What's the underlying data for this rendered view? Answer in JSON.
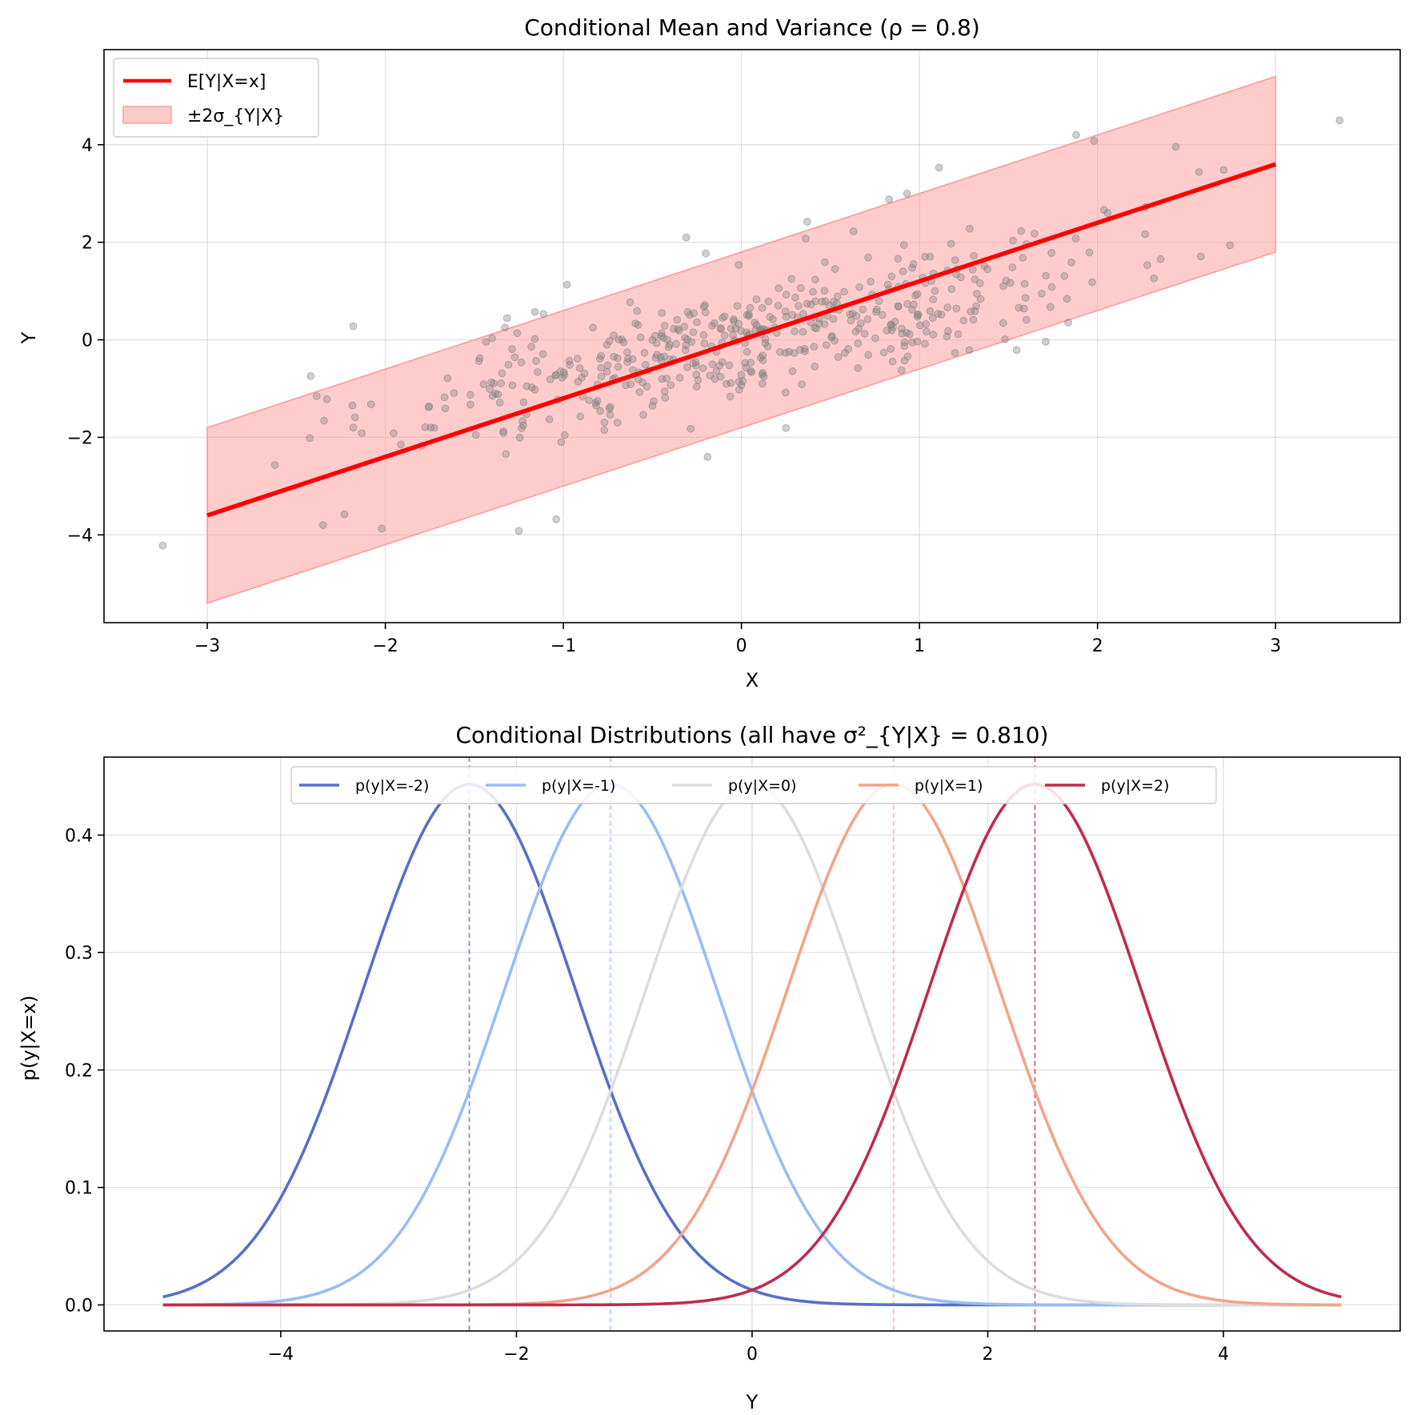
{
  "chart_data": [
    {
      "type": "scatter",
      "title": "Conditional Mean and Variance (ρ = 0.8)",
      "xlabel": "X",
      "ylabel": "Y",
      "xlim": [
        -3.58,
        3.7
      ],
      "ylim": [
        -5.8,
        5.95
      ],
      "xticks": [
        -3,
        -2,
        -1,
        0,
        1,
        2,
        3
      ],
      "yticks": [
        -4,
        -2,
        0,
        2,
        4
      ],
      "xtick_labels": [
        "−3",
        "−2",
        "−1",
        "0",
        "1",
        "2",
        "3"
      ],
      "ytick_labels": [
        "−4",
        "−2",
        "0",
        "2",
        "4"
      ],
      "grid": true,
      "legend_position": "upper-left",
      "rho": 0.8,
      "n_points": 500,
      "mean_line": {
        "name": "E[Y|X=x]",
        "x": [
          -3,
          3
        ],
        "y": [
          -3.6,
          3.6
        ],
        "color": "#ff0000"
      },
      "band": {
        "name": "±2σ_{Y|X}",
        "x": [
          -3,
          3
        ],
        "lower": [
          -5.4,
          1.8
        ],
        "upper": [
          -1.8,
          5.4
        ],
        "color": "#ff9999"
      },
      "sample_color": "#808080",
      "outlier_points": [
        [
          -3.25,
          -4.22
        ],
        [
          -2.62,
          -2.57
        ],
        [
          -2.18,
          0.28
        ],
        [
          -2.18,
          -1.8
        ],
        [
          -2.02,
          -3.87
        ],
        [
          -2.35,
          -3.8
        ],
        [
          -2.23,
          -3.58
        ],
        [
          -1.25,
          -3.92
        ],
        [
          -1.04,
          -3.68
        ],
        [
          -0.19,
          -2.4
        ],
        [
          -0.31,
          2.1
        ],
        [
          -0.2,
          1.77
        ],
        [
          -0.98,
          1.13
        ],
        [
          -1.16,
          0.57
        ],
        [
          0.37,
          2.42
        ],
        [
          0.83,
          2.88
        ],
        [
          0.93,
          3.0
        ],
        [
          1.11,
          3.53
        ],
        [
          1.88,
          4.2
        ],
        [
          1.98,
          4.08
        ],
        [
          2.44,
          3.96
        ],
        [
          2.57,
          3.44
        ],
        [
          2.27,
          2.72
        ],
        [
          2.28,
          1.53
        ],
        [
          1.97,
          1.18
        ],
        [
          1.48,
          0.01
        ],
        [
          1.28,
          -0.21
        ],
        [
          0.25,
          -1.81
        ],
        [
          -1.4,
          0.03
        ],
        [
          3.36,
          4.5
        ]
      ]
    },
    {
      "type": "line",
      "title": "Conditional Distributions (all have σ²_{Y|X} = 0.810)",
      "xlabel": "Y",
      "ylabel": "p(y|X=x)",
      "xlim": [
        -5.5,
        5.5
      ],
      "ylim": [
        -0.0222,
        0.4664
      ],
      "xticks": [
        -4,
        -2,
        0,
        2,
        4
      ],
      "yticks": [
        0.0,
        0.1,
        0.2,
        0.3,
        0.4
      ],
      "xtick_labels": [
        "−4",
        "−2",
        "0",
        "2",
        "4"
      ],
      "ytick_labels": [
        "0.0",
        "0.1",
        "0.2",
        "0.3",
        "0.4"
      ],
      "grid": true,
      "legend_position": "top-center",
      "variance": 0.81,
      "y_range": [
        -5,
        5
      ],
      "series": [
        {
          "name": "p(y|X=-2)",
          "x_given": -2,
          "mean": -2.4,
          "color": "#5a6ec8"
        },
        {
          "name": "p(y|X=-1)",
          "x_given": -1,
          "mean": -1.2,
          "color": "#9bbcf5"
        },
        {
          "name": "p(y|X=0)",
          "x_given": 0,
          "mean": 0.0,
          "color": "#dddddd"
        },
        {
          "name": "p(y|X=1)",
          "x_given": 1,
          "mean": 1.2,
          "color": "#f2a489"
        },
        {
          "name": "p(y|X=2)",
          "x_given": 2,
          "mean": 2.4,
          "color": "#bf2b4c"
        }
      ]
    }
  ]
}
